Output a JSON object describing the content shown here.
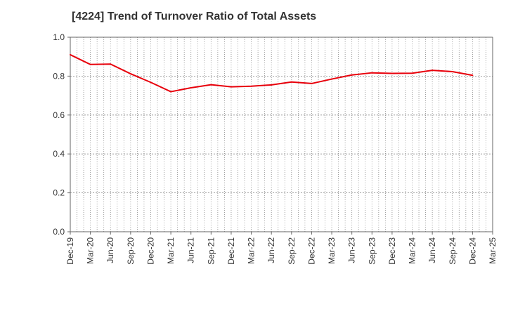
{
  "chart_data": {
    "type": "line",
    "title": "[4224]  Trend of Turnover Ratio of Total Assets",
    "xlabel": "",
    "ylabel": "",
    "x_ticks": [
      "Dec-19",
      "Mar-20",
      "Jun-20",
      "Sep-20",
      "Dec-20",
      "Mar-21",
      "Jun-21",
      "Sep-21",
      "Dec-21",
      "Mar-22",
      "Jun-22",
      "Sep-22",
      "Dec-22",
      "Mar-23",
      "Jun-23",
      "Sep-23",
      "Dec-23",
      "Mar-24",
      "Jun-24",
      "Sep-24",
      "Dec-24",
      "Mar-25"
    ],
    "x": [
      "Dec-19",
      "Mar-20",
      "Jun-20",
      "Sep-20",
      "Dec-20",
      "Mar-21",
      "Jun-21",
      "Sep-21",
      "Dec-21",
      "Mar-22",
      "Jun-22",
      "Sep-22",
      "Dec-22",
      "Mar-23",
      "Jun-23",
      "Sep-23",
      "Dec-23",
      "Mar-24",
      "Jun-24",
      "Sep-24",
      "Dec-24"
    ],
    "series": [
      {
        "values": [
          0.91,
          0.86,
          0.862,
          0.812,
          0.768,
          0.72,
          0.74,
          0.756,
          0.745,
          0.748,
          0.755,
          0.77,
          0.762,
          0.785,
          0.806,
          0.817,
          0.814,
          0.815,
          0.83,
          0.823,
          0.804
        ],
        "color": "#e8000b"
      }
    ],
    "ylim": [
      0,
      1.0
    ],
    "y_ticks": [
      "0.0",
      "0.2",
      "0.4",
      "0.6",
      "0.8",
      "1.0"
    ],
    "grid": true,
    "gridline_color": "#888888",
    "axis_color": "#666666"
  }
}
